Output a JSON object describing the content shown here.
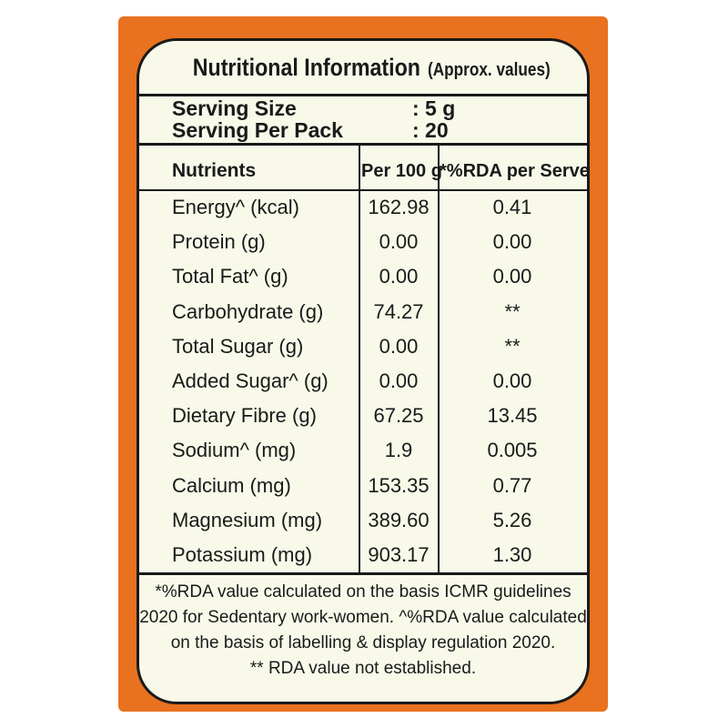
{
  "label": {
    "title": "Nutritional Information",
    "subtitle": "(Approx. values)",
    "serving": [
      {
        "label": "Serving Size",
        "value": ": 5 g"
      },
      {
        "label": "Serving Per Pack",
        "value": ": 20"
      }
    ],
    "headers": {
      "nutrient": "Nutrients",
      "per100": "Per 100 g",
      "rda": "*%RDA per Serve"
    },
    "rows": [
      {
        "name": "Energy^ (kcal)",
        "per100": "162.98",
        "rda": "0.41"
      },
      {
        "name": "Protein (g)",
        "per100": "0.00",
        "rda": "0.00"
      },
      {
        "name": "Total Fat^ (g)",
        "per100": "0.00",
        "rda": "0.00"
      },
      {
        "name": "Carbohydrate (g)",
        "per100": "74.27",
        "rda": "**"
      },
      {
        "name": "Total Sugar (g)",
        "per100": "0.00",
        "rda": "**"
      },
      {
        "name": "Added Sugar^ (g)",
        "per100": "0.00",
        "rda": "0.00"
      },
      {
        "name": "Dietary Fibre (g)",
        "per100": "67.25",
        "rda": "13.45"
      },
      {
        "name": "Sodium^ (mg)",
        "per100": "1.9",
        "rda": "0.005"
      },
      {
        "name": "Calcium (mg)",
        "per100": "153.35",
        "rda": "0.77"
      },
      {
        "name": "Magnesium (mg)",
        "per100": "389.60",
        "rda": "5.26"
      },
      {
        "name": "Potassium (mg)",
        "per100": "903.17",
        "rda": "1.30"
      }
    ],
    "footnote_lines": [
      "*%RDA value calculated on the basis ICMR guidelines",
      "2020 for Sedentary work-women. ^%RDA value calculated",
      "on the basis of labelling & display regulation 2020.",
      "** RDA value not established."
    ],
    "colors": {
      "background_band": "#e8721f",
      "card": "#f8f9e9",
      "ink": "#1a1a1a"
    }
  }
}
